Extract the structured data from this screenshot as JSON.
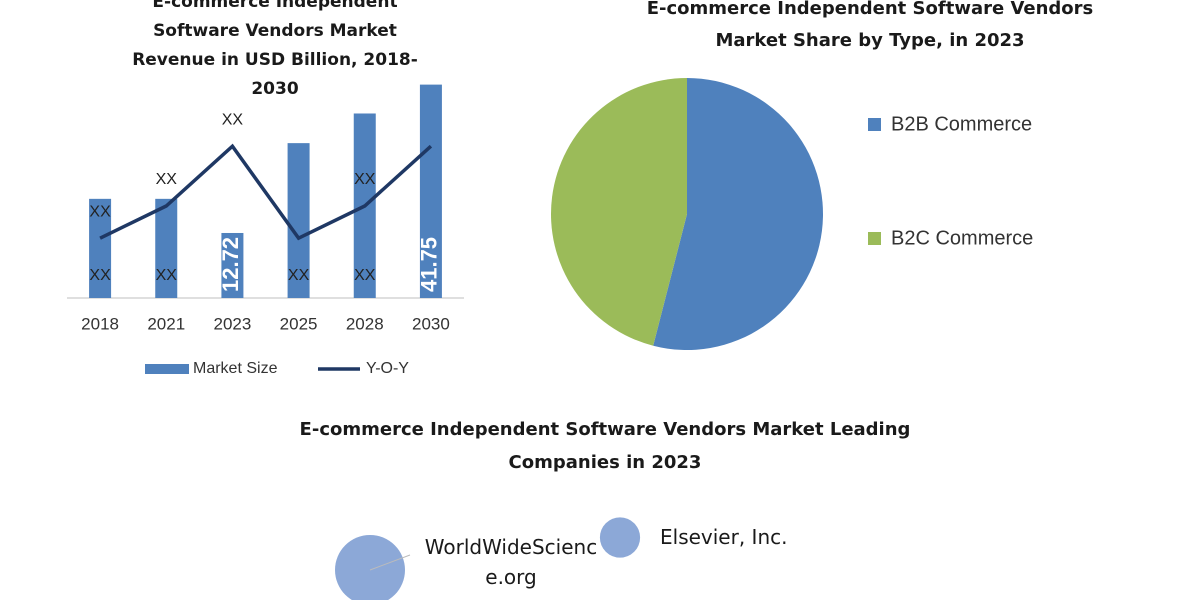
{
  "chart_data": [
    {
      "type": "bar",
      "title": "E-commerce Independent Software Vendors Market Revenue in USD Billion, 2018-2030",
      "categories": [
        "2018",
        "2021",
        "2023",
        "2025",
        "2028",
        "2030"
      ],
      "series": [
        {
          "name": "Market Size",
          "color": "#4f81bd",
          "values": [
            19.4,
            19.4,
            12.72,
            30.3,
            36.1,
            41.75
          ],
          "value_labels": [
            "XX",
            "XX",
            "12.72",
            "XX",
            "XX",
            "41.75"
          ]
        },
        {
          "name": "Y-O-Y",
          "type": "line",
          "axis": "y2",
          "color": "#1f3864",
          "values": [
            26,
            40,
            66,
            26,
            40,
            66
          ],
          "value_labels": [
            "XX",
            "XX",
            "XX",
            null,
            "XX",
            null
          ]
        }
      ],
      "ylim": [
        0,
        45
      ],
      "y2lim": [
        0,
        100
      ]
    },
    {
      "type": "pie",
      "title": "E-commerce Independent Software Vendors Market Share by Type, in 2023",
      "categories": [
        "B2B Commerce",
        "B2C Commerce"
      ],
      "values": [
        54,
        46
      ],
      "colors": [
        "#4f81bd",
        "#9bbb59"
      ]
    },
    {
      "type": "bubble",
      "title": "E-commerce Independent Software Vendors Market Leading Companies in 2023",
      "labels": [
        "WorldWideScience.org",
        "Elsevier, Inc."
      ],
      "x": [
        1.2,
        3.7
      ],
      "values": [
        0.6,
        1.25
      ],
      "sizes": [
        100,
        33
      ],
      "color": "#7f9fd3",
      "xlim": [
        0,
        6
      ],
      "ylim": [
        0,
        2
      ]
    }
  ]
}
